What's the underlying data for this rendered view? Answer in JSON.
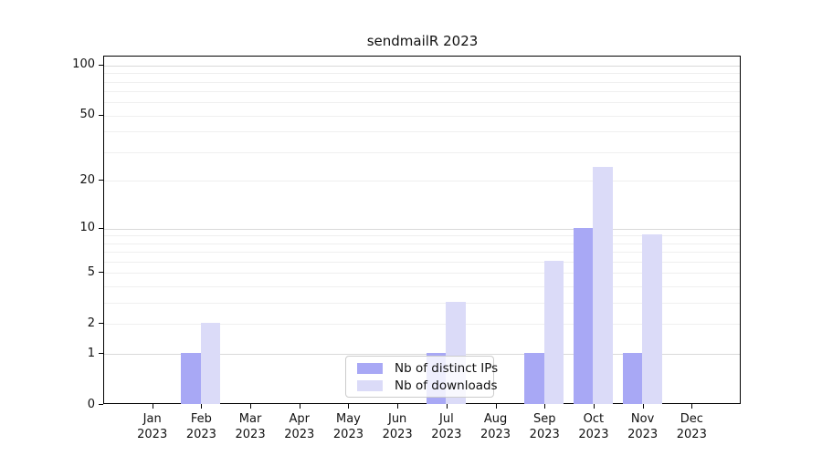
{
  "title": "sendmailR 2023",
  "colors": {
    "distinct_ips_bar": "#a8a8f5",
    "downloads_bar": "#dbdbf8",
    "grid_major": "#d9d9d9",
    "grid_minor": "#efefef",
    "axis_line": "#000000",
    "legend_border": "#cccccc",
    "background": "#ffffff"
  },
  "legend": {
    "position": "inside-bottom-center",
    "items": [
      {
        "label": "Nb of distinct IPs",
        "color": "#a8a8f5"
      },
      {
        "label": "Nb of downloads",
        "color": "#dbdbf8"
      }
    ]
  },
  "chart_data": {
    "type": "bar",
    "title": "sendmailR 2023",
    "categories": [
      "Jan 2023",
      "Feb 2023",
      "Mar 2023",
      "Apr 2023",
      "May 2023",
      "Jun 2023",
      "Jul 2023",
      "Aug 2023",
      "Sep 2023",
      "Oct 2023",
      "Nov 2023",
      "Dec 2023"
    ],
    "series": [
      {
        "name": "Nb of distinct IPs",
        "color": "#a8a8f5",
        "values": [
          0,
          1,
          0,
          0,
          0,
          0,
          1,
          0,
          1,
          10,
          1,
          0
        ]
      },
      {
        "name": "Nb of downloads",
        "color": "#dbdbf8",
        "values": [
          0,
          2,
          0,
          0,
          0,
          0,
          3,
          0,
          6,
          24,
          9,
          0
        ]
      }
    ],
    "xlabel": "",
    "ylabel": "",
    "yscale": "log1p",
    "yticks": [
      0,
      1,
      2,
      5,
      10,
      20,
      50,
      100
    ],
    "ylim": [
      0,
      113
    ],
    "grid": "horizontal"
  }
}
